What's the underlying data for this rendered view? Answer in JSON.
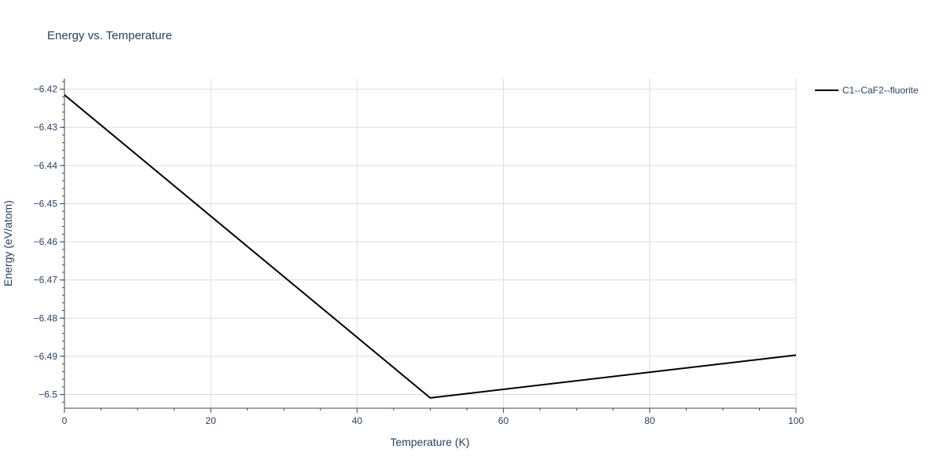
{
  "chart_data": {
    "type": "line",
    "title": "Energy vs. Temperature",
    "xlabel": "Temperature (K)",
    "ylabel": "Energy (eV/atom)",
    "xlim": [
      0,
      100
    ],
    "ylim": [
      -6.5036,
      -6.4172
    ],
    "x_ticks": [
      0,
      20,
      40,
      60,
      80,
      100
    ],
    "y_ticks": [
      -6.5,
      -6.49,
      -6.48,
      -6.47,
      -6.46,
      -6.45,
      -6.44,
      -6.43,
      -6.42
    ],
    "y_tick_labels": [
      "−6.5",
      "−6.49",
      "−6.48",
      "−6.47",
      "−6.46",
      "−6.45",
      "−6.44",
      "−6.43",
      "−6.42"
    ],
    "grid": true,
    "legend_position": "top-right",
    "series": [
      {
        "name": "C1--CaF2--fluorite",
        "color": "#000000",
        "x": [
          0,
          50,
          100
        ],
        "y": [
          -6.4215,
          -6.5009,
          -6.4897
        ]
      }
    ]
  }
}
